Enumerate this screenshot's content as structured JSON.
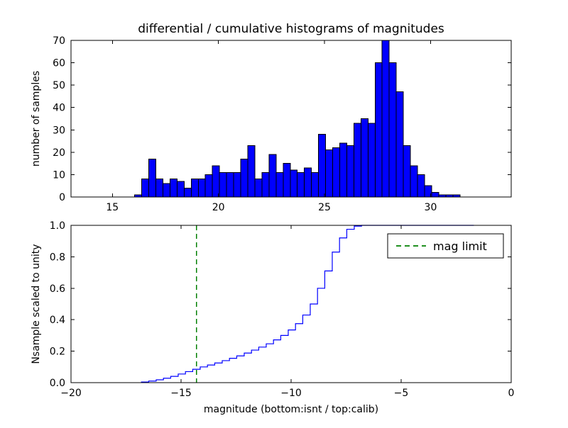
{
  "figure": {
    "background": "#ffffff"
  },
  "chart_data": [
    {
      "type": "bar",
      "name": "differential-histogram",
      "title": "differential / cumulative histograms of magnitudes",
      "xlabel": "",
      "ylabel": "number of samples",
      "xlim": [
        13.05,
        33.8
      ],
      "ylim": [
        0,
        70
      ],
      "grid": false,
      "xticks": {
        "values": [
          15,
          20,
          25,
          30
        ],
        "labels": [
          "15",
          "20",
          "25",
          "30"
        ]
      },
      "yticks": {
        "values": [
          0,
          10,
          20,
          30,
          40,
          50,
          60,
          70
        ],
        "labels": [
          "0",
          "10",
          "20",
          "30",
          "40",
          "50",
          "60",
          "70"
        ]
      },
      "bar_fill": "#0000ff",
      "bar_edge": "#000000",
      "bins": {
        "start": 16.05,
        "width": 0.33333
      },
      "counts": [
        1,
        8,
        17,
        8,
        6,
        8,
        7,
        4,
        8,
        8,
        10,
        14,
        11,
        11,
        11,
        17,
        23,
        8,
        11,
        19,
        11,
        15,
        12,
        11,
        13,
        11,
        28,
        21,
        22,
        24,
        23,
        33,
        35,
        33,
        60,
        70,
        60,
        47,
        23,
        14,
        10,
        5,
        2,
        1,
        1,
        1
      ]
    },
    {
      "type": "line",
      "name": "cumulative-histogram",
      "title": "",
      "xlabel": "magnitude (bottom:isnt / top:calib)",
      "ylabel": "Nsample scaled to unity",
      "xlim": [
        -20,
        0
      ],
      "ylim": [
        0.0,
        1.0
      ],
      "grid": false,
      "xticks": {
        "values": [
          -20,
          -15,
          -10,
          -5,
          0
        ],
        "labels": [
          "−20",
          "−15",
          "−10",
          "−5",
          "0"
        ]
      },
      "yticks": {
        "values": [
          0.0,
          0.2,
          0.4,
          0.6,
          0.8,
          1.0
        ],
        "labels": [
          "0.0",
          "0.2",
          "0.4",
          "0.6",
          "0.8",
          "1.0"
        ]
      },
      "line_color": "#0000ff",
      "step": {
        "edges": [
          -16.8,
          -16.47,
          -16.13,
          -15.8,
          -15.47,
          -15.13,
          -14.8,
          -14.47,
          -14.13,
          -13.8,
          -13.47,
          -13.13,
          -12.8,
          -12.47,
          -12.13,
          -11.8,
          -11.47,
          -11.13,
          -10.8,
          -10.47,
          -10.13,
          -9.8,
          -9.47,
          -9.13,
          -8.8,
          -8.47,
          -8.13,
          -7.8,
          -7.47,
          -7.13,
          -6.8
        ],
        "cum": [
          0.004,
          0.01,
          0.018,
          0.028,
          0.04,
          0.055,
          0.07,
          0.085,
          0.1,
          0.112,
          0.125,
          0.14,
          0.155,
          0.17,
          0.188,
          0.207,
          0.226,
          0.247,
          0.272,
          0.3,
          0.335,
          0.375,
          0.43,
          0.5,
          0.6,
          0.71,
          0.83,
          0.92,
          0.975,
          0.995,
          1.0
        ],
        "end": -1.7
      },
      "vline": {
        "x": -14.3,
        "color": "#008000",
        "dash": "7,5",
        "label": "mag limit"
      },
      "legend": {
        "position": "upper right",
        "entries": [
          {
            "label": "mag limit",
            "color": "#008000",
            "dash": "7,5"
          }
        ]
      }
    }
  ]
}
